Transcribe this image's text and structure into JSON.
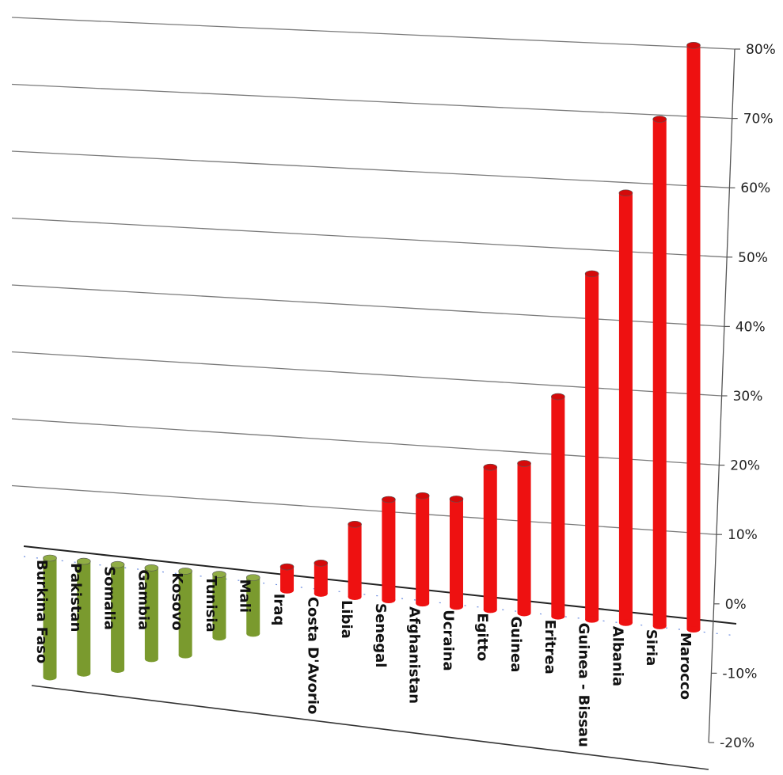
{
  "chart_data": {
    "type": "bar",
    "categories": [
      "Burkina Faso",
      "Pakistan",
      "Somalia",
      "Gambia",
      "Kosovo",
      "Tunisia",
      "Mali",
      "Iraq",
      "Costa D'Avorio",
      "Libia",
      "Senegal",
      "Afghanistan",
      "Ucraina",
      "Egitto",
      "Guinea",
      "Eritrea",
      "Guinea - Bissau",
      "Albania",
      "Siria",
      "Marocco"
    ],
    "values": [
      -17,
      -16,
      -15,
      -13,
      -12,
      -9,
      -8,
      2,
      3,
      9,
      13,
      14,
      14,
      19,
      20,
      30,
      48,
      60,
      71,
      82
    ],
    "ylim": [
      -20,
      80
    ],
    "yticks": [
      "-20%",
      "-10%",
      "0%",
      "10%",
      "20%",
      "30%",
      "40%",
      "50%",
      "60%",
      "70%",
      "80%"
    ],
    "colors": {
      "negative": "#7a9a2e",
      "positive": "#ee1111"
    },
    "grid": true,
    "title": "",
    "xlabel": "",
    "ylabel": ""
  }
}
